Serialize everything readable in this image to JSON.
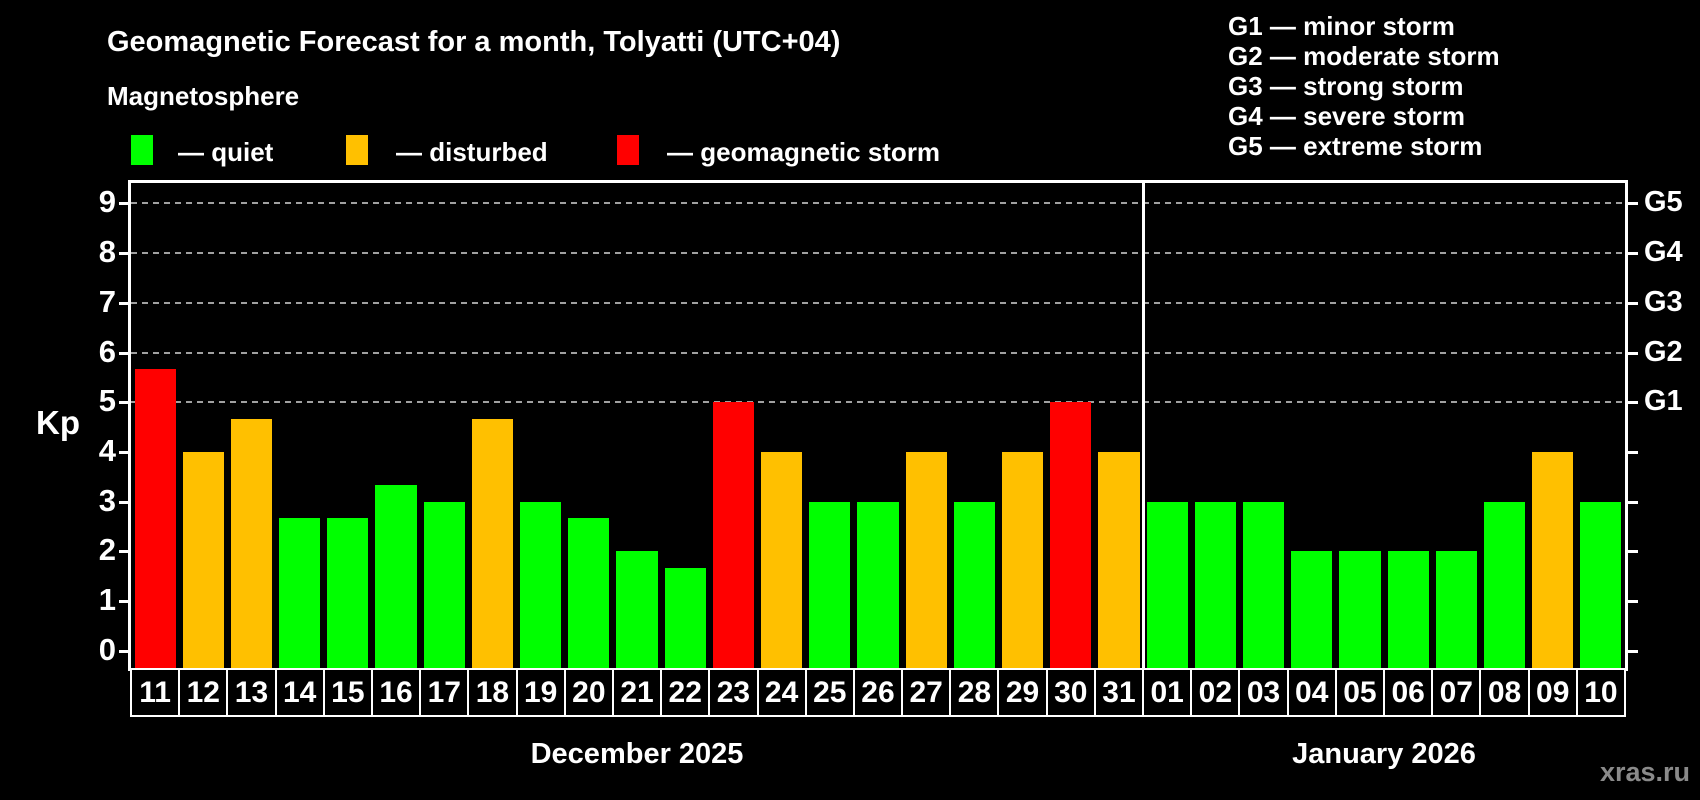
{
  "title": "Geomagnetic Forecast for a month, Tolyatti (UTC+04)",
  "magnetosphere_label": "Magnetosphere",
  "legend": {
    "items": [
      {
        "label": "— quiet",
        "level": "quiet"
      },
      {
        "label": "— disturbed",
        "level": "disturbed"
      },
      {
        "label": "— geomagnetic storm",
        "level": "storm"
      }
    ]
  },
  "storm_scale_legend": [
    "G1 — minor storm",
    "G2 — moderate storm",
    "G3 — strong storm",
    "G4 — severe storm",
    "G5 — extreme storm"
  ],
  "watermark": "xras.ru",
  "chart_data": {
    "type": "bar",
    "title": "Geomagnetic Forecast for a month, Tolyatti (UTC+04)",
    "ylabel": "Kp",
    "ylim": [
      -0.35,
      9.41
    ],
    "yticks": [
      0,
      1,
      2,
      3,
      4,
      5,
      6,
      7,
      8,
      9
    ],
    "gridlines_kp": [
      5,
      6,
      7,
      8,
      9
    ],
    "right_axis_labels": [
      {
        "kp": 5,
        "label": "G1"
      },
      {
        "kp": 6,
        "label": "G2"
      },
      {
        "kp": 7,
        "label": "G3"
      },
      {
        "kp": 8,
        "label": "G4"
      },
      {
        "kp": 9,
        "label": "G5"
      }
    ],
    "legend_position": "top-left",
    "grid": true,
    "colors": {
      "quiet": "#00ff00",
      "disturbed": "#ffc000",
      "storm": "#ff0000"
    },
    "groups": [
      {
        "label": "December 2025",
        "days": [
          "11",
          "12",
          "13",
          "14",
          "15",
          "16",
          "17",
          "18",
          "19",
          "20",
          "21",
          "22",
          "23",
          "24",
          "25",
          "26",
          "27",
          "28",
          "29",
          "30",
          "31"
        ],
        "values": [
          5.67,
          4,
          4.67,
          2.67,
          2.67,
          3.33,
          3,
          4.67,
          3,
          2.67,
          2,
          1.67,
          5,
          4,
          3,
          3,
          4,
          3,
          4,
          5,
          4
        ],
        "levels": [
          "storm",
          "disturbed",
          "disturbed",
          "quiet",
          "quiet",
          "quiet",
          "quiet",
          "disturbed",
          "quiet",
          "quiet",
          "quiet",
          "quiet",
          "storm",
          "disturbed",
          "quiet",
          "quiet",
          "disturbed",
          "quiet",
          "disturbed",
          "storm",
          "disturbed"
        ]
      },
      {
        "label": "January 2026",
        "days": [
          "01",
          "02",
          "03",
          "04",
          "05",
          "06",
          "07",
          "08",
          "09",
          "10"
        ],
        "values": [
          3,
          3,
          3,
          2,
          2,
          2,
          2,
          3,
          4,
          3
        ],
        "levels": [
          "quiet",
          "quiet",
          "quiet",
          "quiet",
          "quiet",
          "quiet",
          "quiet",
          "quiet",
          "disturbed",
          "quiet"
        ]
      }
    ]
  }
}
